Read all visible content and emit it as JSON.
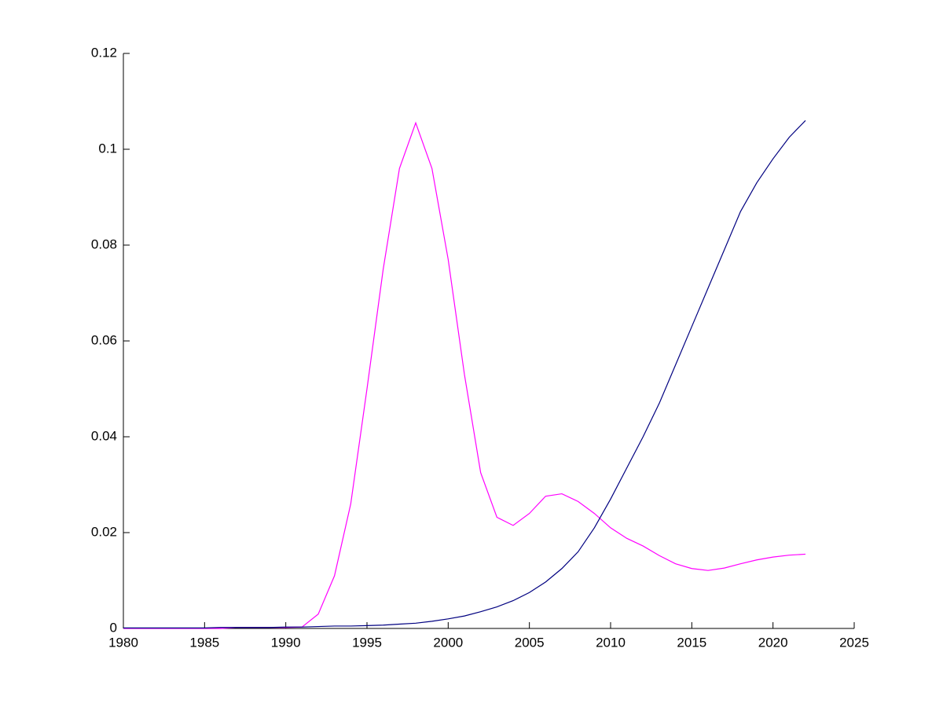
{
  "chart_data": {
    "type": "line",
    "x": [
      1980,
      1981,
      1982,
      1983,
      1984,
      1985,
      1986,
      1987,
      1988,
      1989,
      1990,
      1991,
      1992,
      1993,
      1994,
      1995,
      1996,
      1997,
      1998,
      1999,
      2000,
      2001,
      2002,
      2003,
      2004,
      2005,
      2006,
      2007,
      2008,
      2009,
      2010,
      2011,
      2012,
      2013,
      2014,
      2015,
      2016,
      2017,
      2018,
      2019,
      2020,
      2021,
      2022
    ],
    "series": [
      {
        "color": "#ff00ff",
        "values": [
          0,
          0,
          0,
          0,
          0,
          0,
          0,
          0.0002,
          0.0002,
          0.0002,
          0.0002,
          0.0003,
          0.003,
          0.011,
          0.026,
          0.05,
          0.075,
          0.096,
          0.1055,
          0.096,
          0.077,
          0.053,
          0.0325,
          0.0232,
          0.0215,
          0.024,
          0.0276,
          0.0281,
          0.0265,
          0.024,
          0.021,
          0.0188,
          0.0172,
          0.0152,
          0.0135,
          0.0125,
          0.0121,
          0.0126,
          0.0135,
          0.0143,
          0.0149,
          0.0153,
          0.0155
        ]
      },
      {
        "color": "#000080",
        "values": [
          0.0001,
          0.0001,
          0.0001,
          0.0001,
          0.0001,
          0.0001,
          0.0002,
          0.0002,
          0.0002,
          0.0002,
          0.0003,
          0.0003,
          0.0004,
          0.0005,
          0.0005,
          0.0006,
          0.0007,
          0.0009,
          0.0011,
          0.0015,
          0.002,
          0.0026,
          0.0035,
          0.0045,
          0.0058,
          0.0075,
          0.0097,
          0.0125,
          0.016,
          0.021,
          0.027,
          0.0335,
          0.04,
          0.047,
          0.055,
          0.063,
          0.071,
          0.079,
          0.087,
          0.093,
          0.098,
          0.1025,
          0.106
        ]
      }
    ],
    "xlim": [
      1980,
      2025
    ],
    "xticks": [
      1980,
      1985,
      1990,
      1995,
      2000,
      2005,
      2010,
      2015,
      2020,
      2025
    ],
    "ylim": [
      0,
      0.12
    ],
    "yticks": [
      0,
      0.02,
      0.04,
      0.06,
      0.08,
      0.1,
      0.12
    ]
  }
}
